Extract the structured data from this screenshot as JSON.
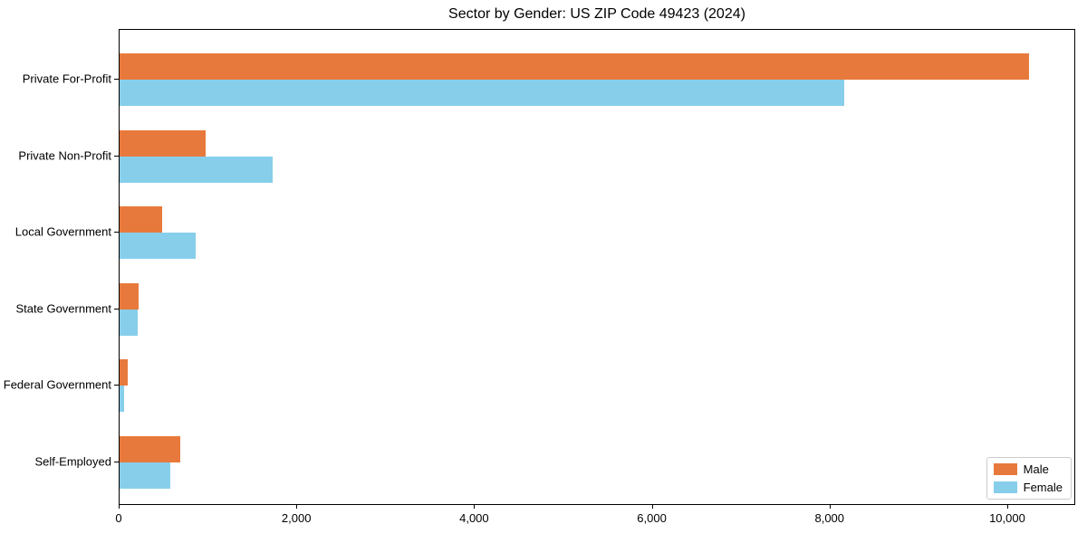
{
  "chart_data": {
    "type": "bar",
    "orientation": "horizontal",
    "title": "Sector by Gender: US ZIP Code 49423 (2024)",
    "categories": [
      "Private For-Profit",
      "Private Non-Profit",
      "Local Government",
      "State Government",
      "Federal Government",
      "Self-Employed"
    ],
    "series": [
      {
        "name": "Male",
        "color": "#E8793C",
        "values": [
          10234,
          971,
          479,
          217,
          89,
          680
        ]
      },
      {
        "name": "Female",
        "color": "#87CEEB",
        "values": [
          8155,
          1726,
          859,
          207,
          51,
          568
        ]
      }
    ],
    "xlim": [
      0,
      10765
    ],
    "xticks": [
      0,
      2000,
      4000,
      6000,
      8000,
      10000
    ],
    "xtick_labels": [
      "0",
      "2,000",
      "4,000",
      "6,000",
      "8,000",
      "10,000"
    ],
    "xlabel": "",
    "ylabel": "",
    "grid": false,
    "legend_position": "lower right"
  }
}
